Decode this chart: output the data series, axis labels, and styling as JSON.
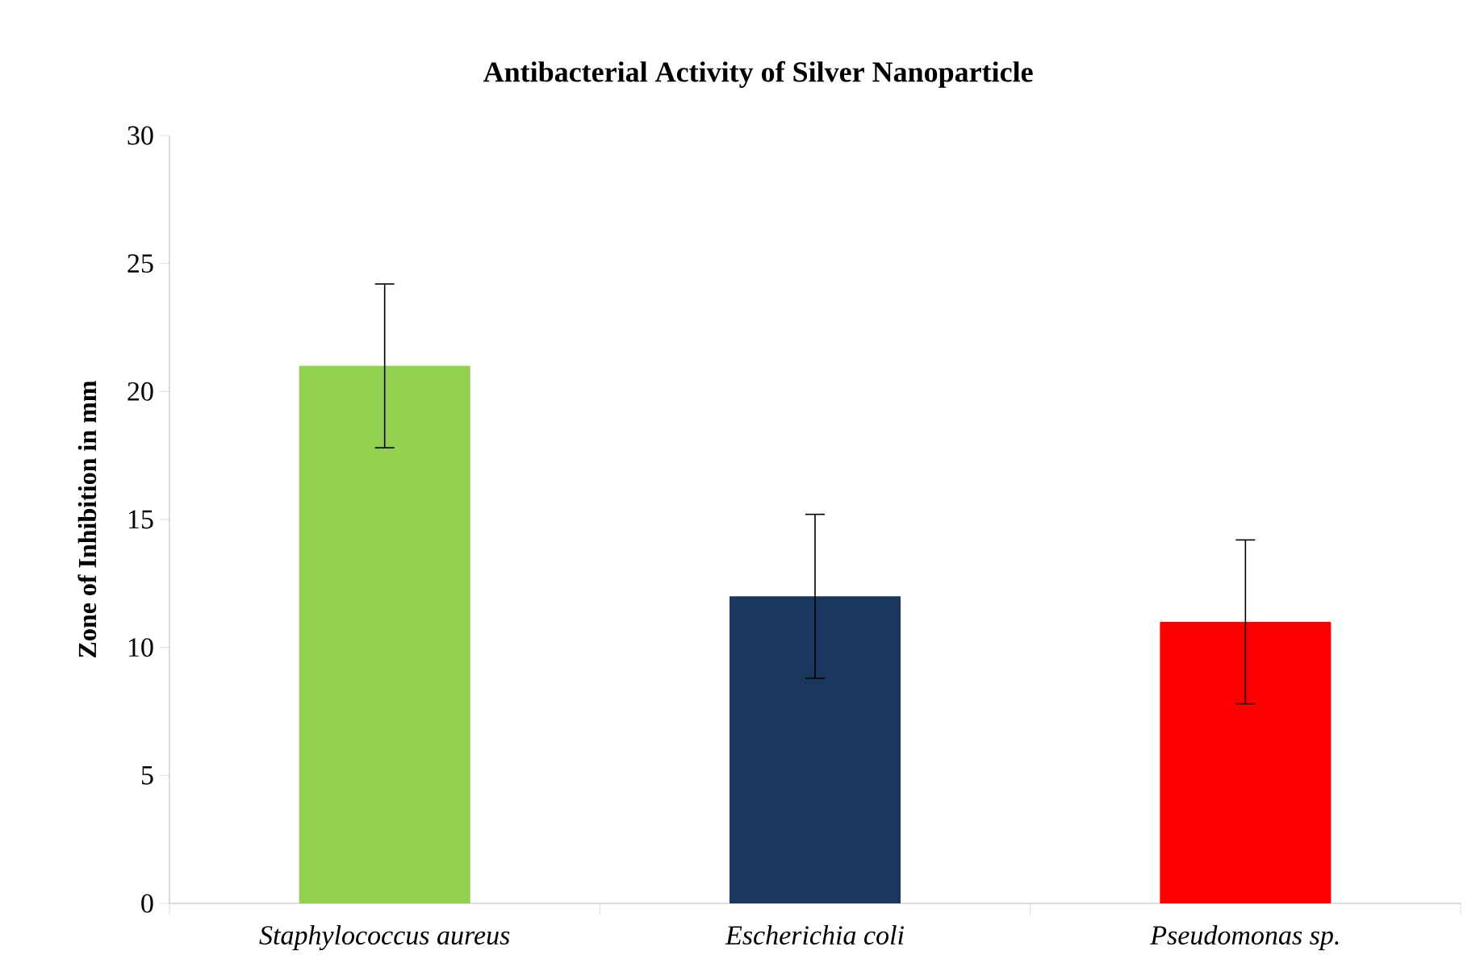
{
  "chart_data": {
    "type": "bar",
    "title": "Antibacterial Activity of Silver Nanoparticle",
    "ylabel": "Zone of Inhibition  in mm",
    "categories": [
      "Staphylococcus aureus",
      "Escherichia coli",
      "Pseudomonas sp."
    ],
    "values": [
      21,
      12,
      11
    ],
    "colors": [
      "#92d050",
      "#1a375e",
      "#ff0000"
    ],
    "errors": [
      3.2,
      3.2,
      3.2
    ],
    "ylim": [
      0,
      30
    ],
    "yticks": [
      0,
      5,
      10,
      15,
      20,
      25,
      30
    ],
    "grid": false
  }
}
